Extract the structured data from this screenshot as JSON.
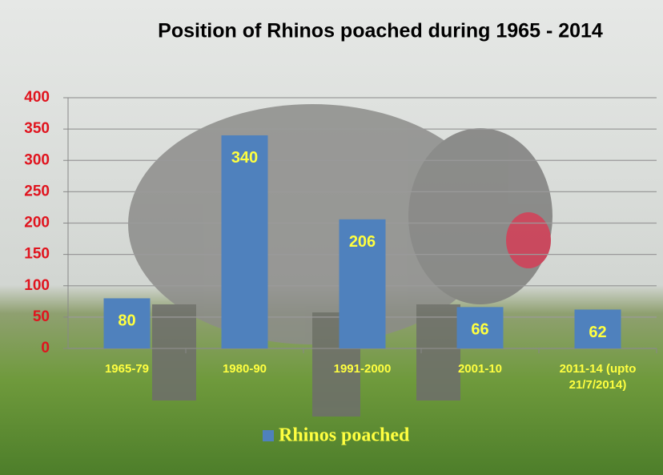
{
  "chart_data": {
    "type": "bar",
    "title": "Position of Rhinos poached during 1965 - 2014",
    "categories": [
      "1965-79",
      "1980-90",
      "1991-2000",
      "2001-10",
      "2011-14 (upto 21/7/2014)"
    ],
    "series": [
      {
        "name": "Rhinos poached",
        "color": "#4f81bd",
        "values": [
          80,
          340,
          206,
          66,
          62
        ]
      }
    ],
    "ylim": [
      0,
      400
    ],
    "yticks": [
      0,
      50,
      100,
      150,
      200,
      250,
      300,
      350,
      400
    ],
    "grid": true
  }
}
